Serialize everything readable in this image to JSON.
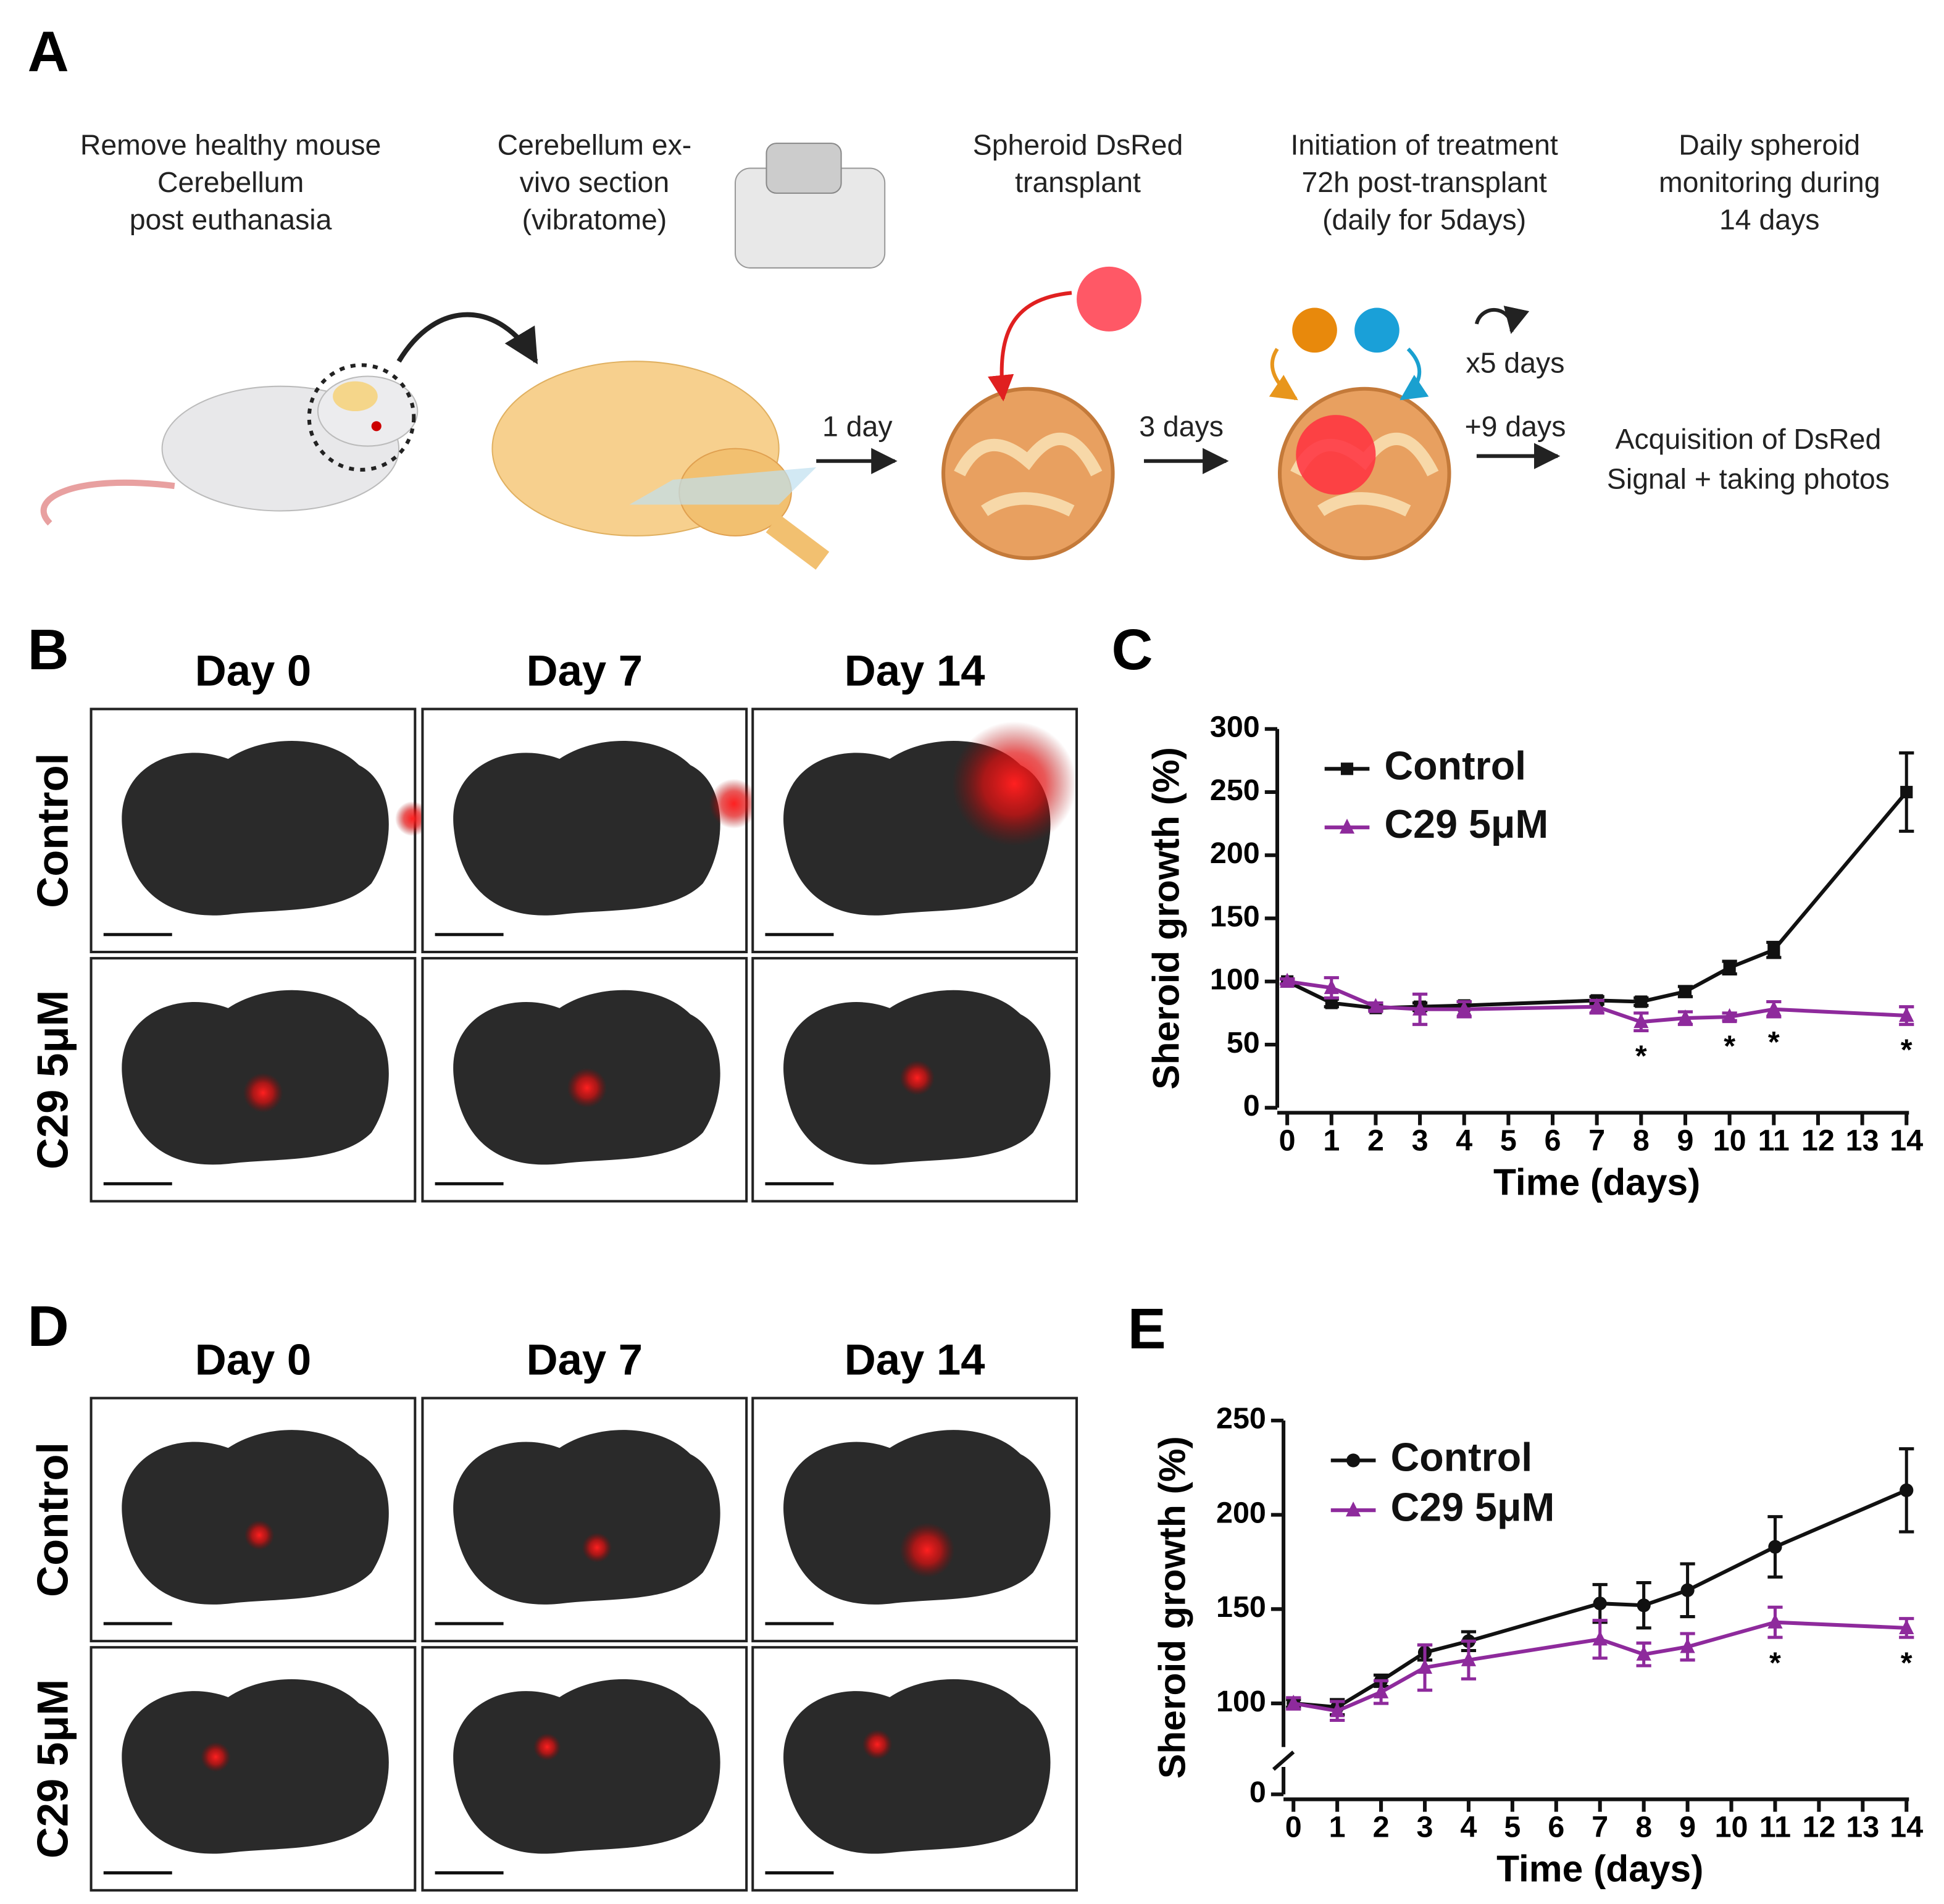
{
  "panel_labels": [
    "A",
    "B",
    "C",
    "D",
    "E"
  ],
  "panel_a": {
    "steps": [
      [
        "Remove healthy mouse",
        "Cerebellum",
        "post euthanasia"
      ],
      [
        "Cerebellum ex-",
        "vivo section",
        "(vibratome)"
      ],
      [
        "Spheroid DsRed",
        "transplant"
      ],
      [
        "Initiation of treatment",
        "72h post-transplant",
        "(daily for 5days)"
      ],
      [
        "Daily spheroid",
        "monitoring during",
        "14 days"
      ]
    ],
    "arrows": [
      "1 day",
      "3 days",
      "x5 days",
      "+9 days"
    ],
    "result": [
      "Acquisition of DsRed",
      "Signal + taking photos"
    ]
  },
  "panel_b": {
    "columns": [
      "Day 0",
      "Day 7",
      "Day 14"
    ],
    "rows": [
      "Control",
      "C29 5μM"
    ]
  },
  "panel_d": {
    "columns": [
      "Day 0",
      "Day 7",
      "Day 14"
    ],
    "rows": [
      "Control",
      "C29 5μM"
    ]
  },
  "chart_data": [
    {
      "type": "line",
      "ylabel": "Sheroid growth (%)",
      "xlabel": "Time (days)",
      "x": [
        0,
        1,
        2,
        3,
        4,
        7,
        8,
        9,
        10,
        11,
        14
      ],
      "series": [
        {
          "name": "Control",
          "color": "#111111",
          "marker": "square",
          "values": [
            100,
            83,
            79,
            80,
            81,
            85,
            84,
            92,
            111,
            125,
            250
          ],
          "errors": [
            2,
            3,
            2,
            3,
            3,
            3,
            3,
            4,
            5,
            6,
            31
          ]
        },
        {
          "name": "C29 5μM",
          "color": "#8e2a9c",
          "marker": "triangle",
          "values": [
            100,
            95,
            80,
            78,
            78,
            80,
            68,
            71,
            72,
            78,
            73
          ],
          "errors": [
            2,
            8,
            3,
            12,
            6,
            5,
            7,
            5,
            3,
            6,
            7
          ]
        }
      ],
      "annotations": [
        {
          "x": 8,
          "text": "*"
        },
        {
          "x": 10,
          "text": "*"
        },
        {
          "x": 11,
          "text": "*"
        },
        {
          "x": 14,
          "text": "*"
        }
      ],
      "xlim": [
        0,
        14
      ],
      "xticks": [
        0,
        1,
        2,
        3,
        4,
        5,
        6,
        7,
        8,
        9,
        10,
        11,
        12,
        13,
        14
      ],
      "ylim": [
        0,
        300
      ],
      "yticks": [
        0,
        50,
        100,
        150,
        200,
        250,
        300
      ],
      "legend": "upper left"
    },
    {
      "type": "line",
      "ylabel": "Sheroid growth (%)",
      "xlabel": "Time (days)",
      "x": [
        0,
        1,
        2,
        3,
        4,
        7,
        8,
        9,
        11,
        14
      ],
      "series": [
        {
          "name": "Control",
          "color": "#111111",
          "marker": "circle",
          "values": [
            100,
            98,
            112,
            127,
            133,
            153,
            152,
            160,
            183,
            213
          ],
          "errors": [
            2,
            4,
            3,
            4,
            5,
            10,
            12,
            14,
            16,
            22
          ]
        },
        {
          "name": "C29 5μM",
          "color": "#8e2a9c",
          "marker": "triangle",
          "values": [
            100,
            96,
            106,
            119,
            123,
            134,
            126,
            130,
            143,
            140
          ],
          "errors": [
            3,
            5,
            6,
            12,
            10,
            10,
            6,
            7,
            8,
            5
          ]
        }
      ],
      "annotations": [
        {
          "x": 11,
          "text": "*"
        },
        {
          "x": 14,
          "text": "*"
        }
      ],
      "xlim": [
        0,
        14
      ],
      "xticks": [
        0,
        1,
        2,
        3,
        4,
        5,
        6,
        7,
        8,
        9,
        10,
        11,
        12,
        13,
        14
      ],
      "ylim": [
        0,
        250
      ],
      "ybreak": [
        0,
        100
      ],
      "yticks": [
        0,
        100,
        150,
        200,
        250
      ],
      "legend": "upper left"
    }
  ]
}
